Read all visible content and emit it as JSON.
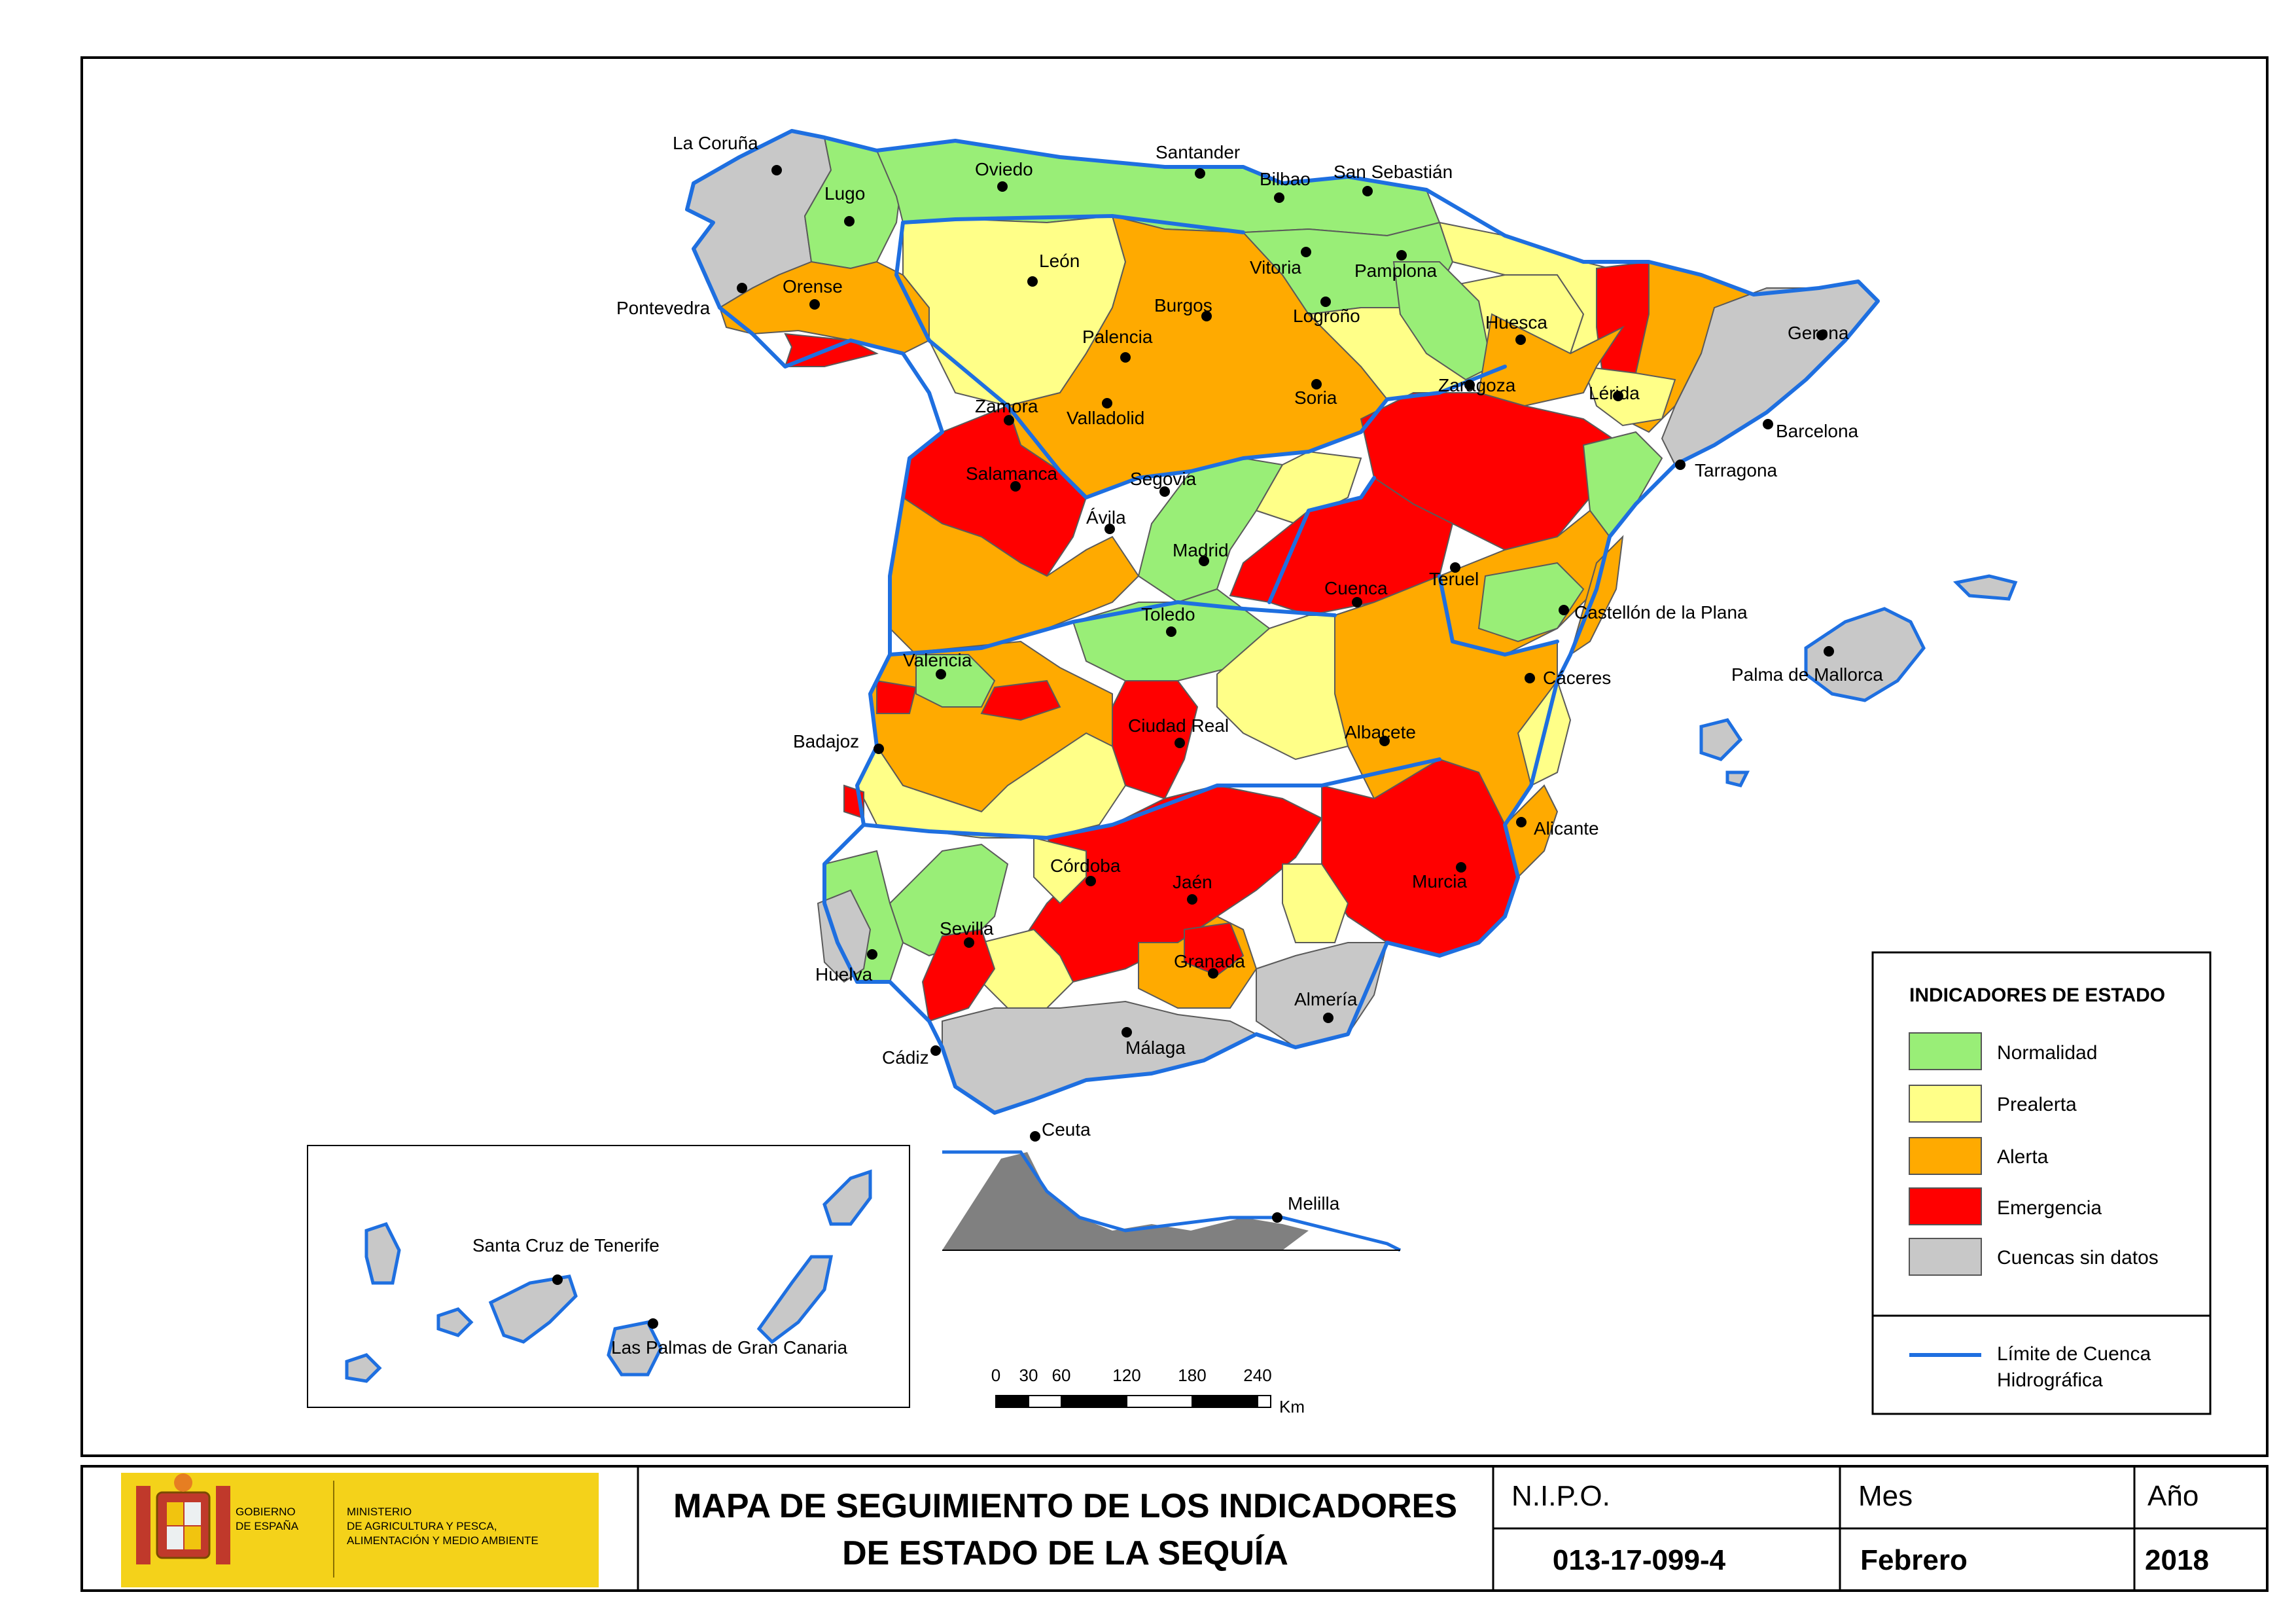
{
  "colors": {
    "normalidad": "#99ee77",
    "prealerta": "#ffff88",
    "alerta": "#ffaa00",
    "emergencia": "#ff0000",
    "sin_datos": "#c8c8c8",
    "limite": "#1e6fe0",
    "header_yellow": "#f4d21a"
  },
  "cities": [
    {
      "name": "La Coruña",
      "icon": "city-dot-icon"
    },
    {
      "name": "Lugo"
    },
    {
      "name": "Oviedo"
    },
    {
      "name": "Santander"
    },
    {
      "name": "Bilbao"
    },
    {
      "name": "San Sebastián"
    },
    {
      "name": "Pontevedra"
    },
    {
      "name": "Orense"
    },
    {
      "name": "León"
    },
    {
      "name": "Vitoria"
    },
    {
      "name": "Pamplona"
    },
    {
      "name": "Burgos"
    },
    {
      "name": "Logroño"
    },
    {
      "name": "Huesca"
    },
    {
      "name": "Gerona"
    },
    {
      "name": "Palencia"
    },
    {
      "name": "Zamora"
    },
    {
      "name": "Soria"
    },
    {
      "name": "Zaragoza"
    },
    {
      "name": "Lérida"
    },
    {
      "name": "Valladolid"
    },
    {
      "name": "Barcelona"
    },
    {
      "name": "Tarragona"
    },
    {
      "name": "Salamanca"
    },
    {
      "name": "Segovia"
    },
    {
      "name": "Ávila"
    },
    {
      "name": "Madrid"
    },
    {
      "name": "Teruel"
    },
    {
      "name": "Cuenca"
    },
    {
      "name": "Toledo"
    },
    {
      "name": "Castellón de la Plana"
    },
    {
      "name": "Cáceres"
    },
    {
      "name": "Valencia"
    },
    {
      "name": "Palma de Mallorca"
    },
    {
      "name": "Ciudad Real"
    },
    {
      "name": "Albacete"
    },
    {
      "name": "Badajoz"
    },
    {
      "name": "Alicante"
    },
    {
      "name": "Córdoba"
    },
    {
      "name": "Jaén"
    },
    {
      "name": "Murcia"
    },
    {
      "name": "Sevilla"
    },
    {
      "name": "Granada"
    },
    {
      "name": "Huelva"
    },
    {
      "name": "Almería"
    },
    {
      "name": "Cádiz"
    },
    {
      "name": "Málaga"
    },
    {
      "name": "Ceuta"
    },
    {
      "name": "Melilla"
    },
    {
      "name": "Santa Cruz de Tenerife"
    },
    {
      "name": "Las Palmas de Gran Canaria"
    }
  ],
  "legend": {
    "title": "INDICADORES DE ESTADO",
    "items": [
      {
        "label": "Normalidad",
        "key": "normalidad"
      },
      {
        "label": "Prealerta",
        "key": "prealerta"
      },
      {
        "label": "Alerta",
        "key": "alerta"
      },
      {
        "label": "Emergencia",
        "key": "emergencia"
      },
      {
        "label": "Cuencas sin datos",
        "key": "sin_datos"
      }
    ],
    "line_label_1": "Límite de Cuenca",
    "line_label_2": "Hidrográfica"
  },
  "scale": {
    "ticks": [
      "0",
      "30",
      "60",
      "120",
      "180",
      "240"
    ],
    "unit": "Km"
  },
  "footer": {
    "gov_line1": "GOBIERNO",
    "gov_line2": "DE ESPAÑA",
    "ministry_line1": "MINISTERIO",
    "ministry_line2": "DE AGRICULTURA Y PESCA,",
    "ministry_line3": "ALIMENTACIÓN Y MEDIO AMBIENTE",
    "title_line1": "MAPA DE SEGUIMIENTO DE LOS INDICADORES",
    "title_line2": "DE ESTADO DE LA SEQUÍA",
    "nipo_label": "N.I.P.O.",
    "nipo_value": "013-17-099-4",
    "mes_label": "Mes",
    "mes_value": "Febrero",
    "anio_label": "Año",
    "anio_value": "2018"
  }
}
